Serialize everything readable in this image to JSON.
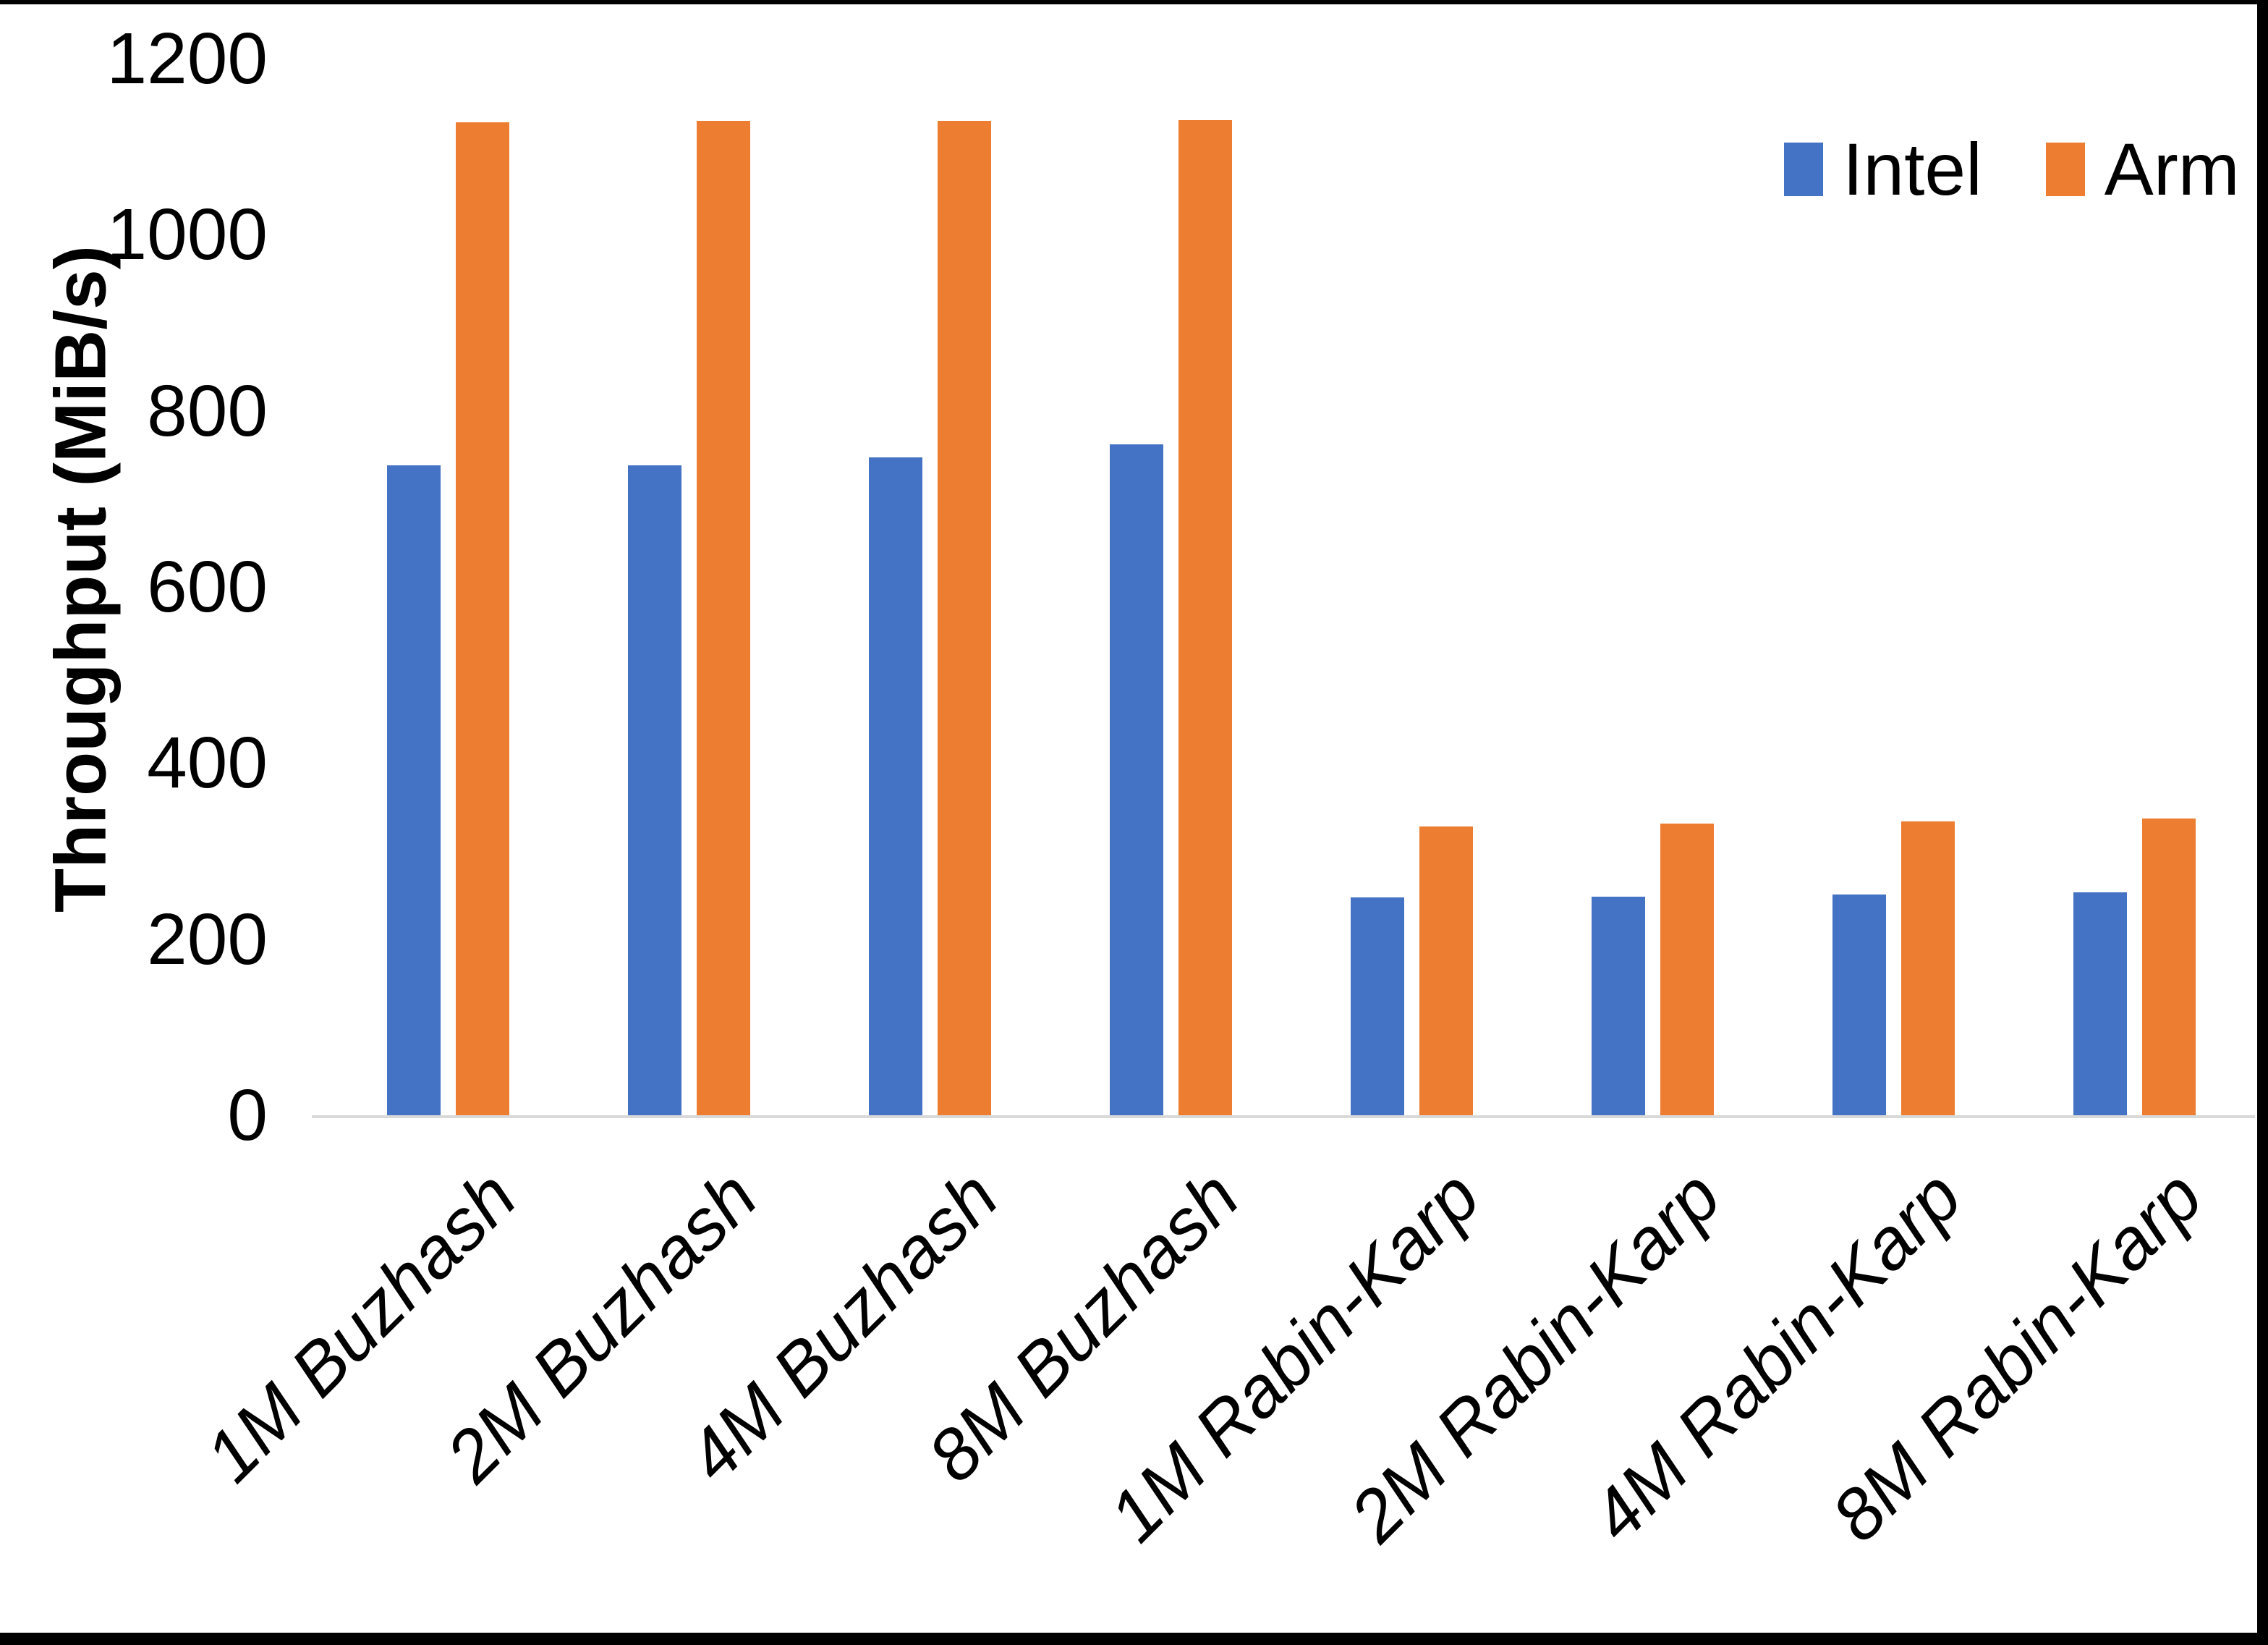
{
  "chart_data": {
    "type": "bar",
    "title": "",
    "categories": [
      "1M Buzhash",
      "2M Buzhash",
      "4M Buzhash",
      "8M Buzhash",
      "1M Rabin-Karp",
      "2M Rabin-Karp",
      "4M Rabin-Karp",
      "8M Rabin-Karp"
    ],
    "series": [
      {
        "name": "Intel",
        "color": "#4472C4",
        "values": [
          738,
          738,
          747,
          762,
          247,
          248,
          251,
          253
        ]
      },
      {
        "name": "Arm",
        "color": "#ED7D31",
        "values": [
          1128,
          1129,
          1129,
          1130,
          328,
          331,
          334,
          337
        ]
      }
    ],
    "xlabel": "",
    "ylabel": "Throughput (MiB/s)",
    "yticks": [
      0,
      200,
      400,
      600,
      800,
      1000,
      1200
    ],
    "ylim": [
      0,
      1200
    ],
    "grid": false,
    "legend_position": "top-right",
    "axis_line_color": "#d9d9d9",
    "text_color": "#000000",
    "background_color": "#ffffff",
    "border_color": "#000000"
  }
}
